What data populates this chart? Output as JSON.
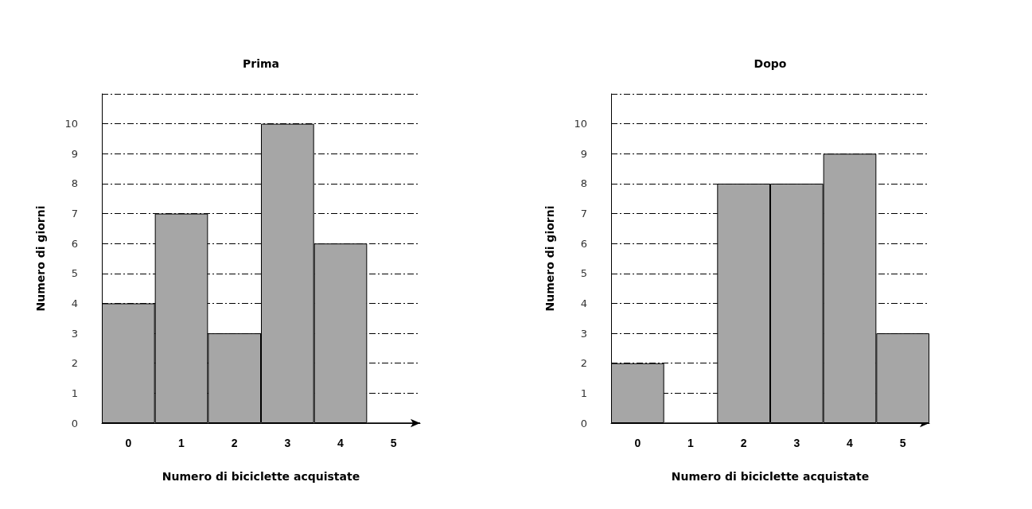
{
  "chart_data": [
    {
      "type": "bar",
      "title": "Prima",
      "xlabel": "Numero di biciclette acquistate",
      "ylabel": "Numero di giorni",
      "categories": [
        "0",
        "1",
        "2",
        "3",
        "4",
        "5"
      ],
      "color": "#a6a6a6",
      "values": [
        4,
        7,
        3,
        10,
        6,
        0
      ],
      "ylim": [
        0,
        11
      ],
      "yticks": [
        0,
        1,
        2,
        3,
        4,
        5,
        6,
        7,
        8,
        9,
        10,
        {
          "value": 11,
          "label": null
        }
      ],
      "grid": "y",
      "line_style": "dashed"
    },
    {
      "type": "bar",
      "title": "Dopo",
      "xlabel": "Numero di biciclette acquistate",
      "ylabel": "Numero di giorni",
      "categories": [
        "0",
        "1",
        "2",
        "3",
        "4",
        "5"
      ],
      "color": "#a6a6a6",
      "values": [
        2,
        0,
        8,
        8,
        9,
        3
      ],
      "ylim": [
        0,
        11
      ],
      "yticks": [
        0,
        1,
        2,
        3,
        4,
        5,
        6,
        7,
        8,
        9,
        10,
        {
          "value": 11,
          "label": null
        }
      ],
      "grid": "y",
      "line_style": "dashed"
    }
  ]
}
